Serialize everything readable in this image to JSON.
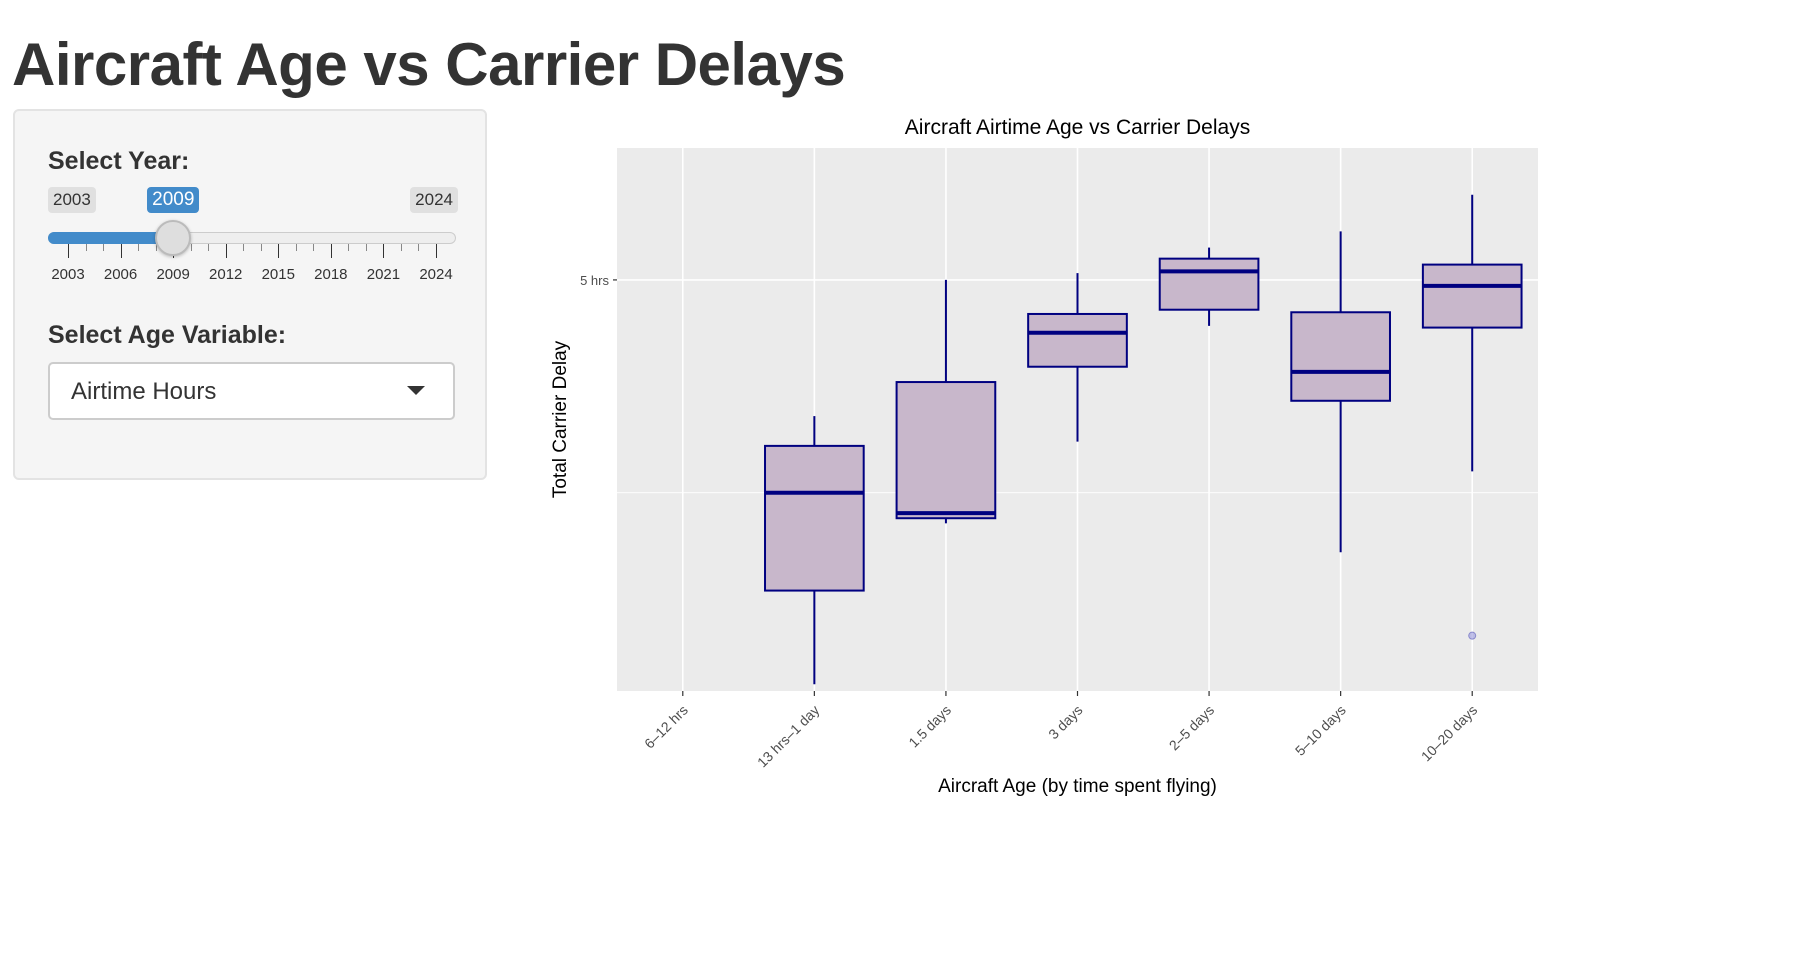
{
  "page": {
    "title": "Aircraft Age vs Carrier Delays"
  },
  "sidebar": {
    "year": {
      "label": "Select Year:",
      "min": 2003,
      "max": 2024,
      "value": 2009,
      "min_text": "2003",
      "max_text": "2024",
      "value_text": "2009",
      "ticks": [
        "2003",
        "2006",
        "2009",
        "2012",
        "2015",
        "2018",
        "2021",
        "2024"
      ],
      "accent": "#428bca"
    },
    "age_variable": {
      "label": "Select Age Variable:",
      "selected": "Airtime Hours",
      "icon": "chevron-down-icon"
    }
  },
  "chart_data": {
    "type": "boxplot",
    "title": "Aircraft Airtime Age vs Carrier Delays",
    "xlabel": "Aircraft Age (by time spent flying)",
    "ylabel": "Total Carrier Delay",
    "categories": [
      "6–12 hrs",
      "13 hrs–1 day",
      "1.5 days",
      "3 days",
      "2–5 days",
      "5–10 days",
      "10–20 days"
    ],
    "y_ticks": [
      {
        "value": 5,
        "label": "5 hrs"
      }
    ],
    "y_unit": "hrs",
    "ylim": [
      0.17,
      6.55
    ],
    "grid": true,
    "fill_color": "#c8b7cb",
    "line_color": "#000080",
    "background": "#ebebeb",
    "boxes": [
      null,
      {
        "whisker_low": 0.25,
        "q1": 1.35,
        "median": 2.5,
        "q3": 3.05,
        "whisker_high": 3.4
      },
      {
        "whisker_low": 2.14,
        "q1": 2.2,
        "median": 2.26,
        "q3": 3.8,
        "whisker_high": 5.0
      },
      {
        "whisker_low": 3.1,
        "q1": 3.98,
        "median": 4.38,
        "q3": 4.6,
        "whisker_high": 5.08
      },
      {
        "whisker_low": 4.46,
        "q1": 4.65,
        "median": 5.1,
        "q3": 5.25,
        "whisker_high": 5.38
      },
      {
        "whisker_low": 1.8,
        "q1": 3.58,
        "median": 3.92,
        "q3": 4.62,
        "whisker_high": 5.57
      },
      {
        "whisker_low": 2.75,
        "q1": 4.44,
        "median": 4.93,
        "q3": 5.18,
        "whisker_high": 6.0
      }
    ],
    "outliers": [
      {
        "category_index": 6,
        "value": 0.82
      }
    ]
  }
}
